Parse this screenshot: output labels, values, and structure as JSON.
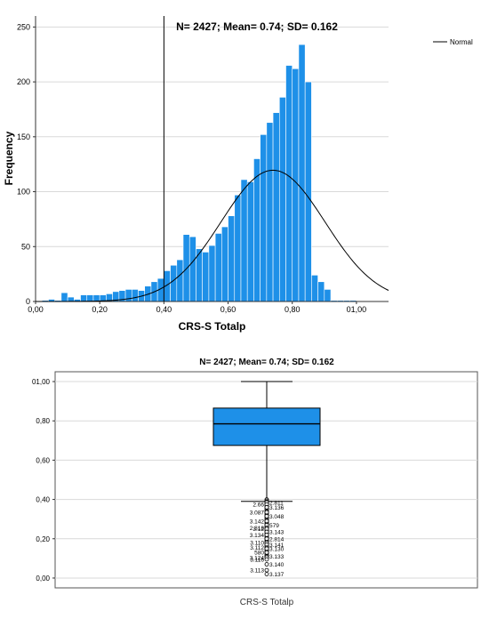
{
  "colors": {
    "bar": "#1E90E8",
    "box": "#1E90E8",
    "line": "#000000",
    "grid": "#d9d9d9"
  },
  "chart_data": [
    {
      "type": "bar",
      "subtype": "histogram-with-normal-curve",
      "annotation": "N= 2427; Mean= 0.74; SD= 0.162",
      "xlabel": "CRS-S Totalp",
      "ylabel": "Frequency",
      "legend": {
        "placement": "top-right",
        "entries": [
          "Normal"
        ]
      },
      "xlim": [
        0.0,
        1.1
      ],
      "ylim": [
        0,
        260
      ],
      "x_ticks": [
        {
          "value": 0.0,
          "label": "0,00"
        },
        {
          "value": 0.2,
          "label": "0,20"
        },
        {
          "value": 0.4,
          "label": "0,40"
        },
        {
          "value": 0.6,
          "label": "0,60"
        },
        {
          "value": 0.8,
          "label": "0,80"
        },
        {
          "value": 1.0,
          "label": "01,00"
        }
      ],
      "y_ticks": [
        0,
        50,
        100,
        150,
        200,
        250
      ],
      "grid": true,
      "reference_line_x": 0.4,
      "bin_width": 0.02,
      "bins_start": [
        0.02,
        0.04,
        0.06,
        0.08,
        0.1,
        0.12,
        0.14,
        0.16,
        0.18,
        0.2,
        0.22,
        0.24,
        0.26,
        0.28,
        0.3,
        0.32,
        0.34,
        0.36,
        0.38,
        0.4,
        0.42,
        0.44,
        0.46,
        0.48,
        0.5,
        0.52,
        0.54,
        0.56,
        0.58,
        0.6,
        0.62,
        0.64,
        0.66,
        0.68,
        0.7,
        0.72,
        0.74,
        0.76,
        0.78,
        0.8,
        0.82,
        0.84,
        0.86,
        0.88,
        0.9,
        0.92,
        0.94,
        0.96,
        0.98
      ],
      "values": [
        1,
        2,
        1,
        8,
        4,
        2,
        6,
        6,
        6,
        6,
        7,
        9,
        10,
        11,
        11,
        10,
        14,
        18,
        21,
        28,
        33,
        38,
        61,
        59,
        48,
        45,
        51,
        62,
        68,
        78,
        97,
        111,
        109,
        130,
        152,
        163,
        172,
        186,
        215,
        212,
        234,
        200,
        24,
        18,
        11,
        1,
        1,
        1,
        1
      ],
      "normal_curve": {
        "mean": 0.74,
        "sd": 0.162,
        "n": 2427
      }
    },
    {
      "type": "box",
      "title": "N= 2427; Mean= 0.74; SD= 0.162",
      "category": "CRS-S Totalp",
      "ylim": [
        -0.05,
        1.05
      ],
      "y_ticks": [
        {
          "value": 0.0,
          "label": "0,00"
        },
        {
          "value": 0.2,
          "label": "0,20"
        },
        {
          "value": 0.4,
          "label": "0,40"
        },
        {
          "value": 0.6,
          "label": "0,60"
        },
        {
          "value": 0.8,
          "label": "0,80"
        },
        {
          "value": 1.0,
          "label": "01,00"
        }
      ],
      "grid": true,
      "stats": {
        "min": 0.39,
        "q1": 0.675,
        "median": 0.785,
        "q3": 0.865,
        "max": 1.0
      },
      "outliers": [
        {
          "value": 0.385,
          "label": "2.811",
          "side": "right"
        },
        {
          "value": 0.375,
          "label": "2.66",
          "side": "left"
        },
        {
          "value": 0.36,
          "label": "3.136",
          "side": "right"
        },
        {
          "value": 0.335,
          "label": "3.087",
          "side": "left"
        },
        {
          "value": 0.315,
          "label": "3.048",
          "side": "right"
        },
        {
          "value": 0.29,
          "label": "3.142",
          "side": "left"
        },
        {
          "value": 0.27,
          "label": "579",
          "side": "right"
        },
        {
          "value": 0.255,
          "label": "2.818",
          "side": "left"
        },
        {
          "value": 0.25,
          "label": "3.12",
          "side": "left"
        },
        {
          "value": 0.235,
          "label": "3.143",
          "side": "right"
        },
        {
          "value": 0.22,
          "label": "3.134",
          "side": "left"
        },
        {
          "value": 0.2,
          "label": "2.814",
          "side": "right"
        },
        {
          "value": 0.18,
          "label": "3.110",
          "side": "left"
        },
        {
          "value": 0.17,
          "label": "3.141",
          "side": "right"
        },
        {
          "value": 0.155,
          "label": "3.112",
          "side": "left"
        },
        {
          "value": 0.15,
          "label": "3.130",
          "side": "right"
        },
        {
          "value": 0.13,
          "label": "580",
          "side": "left"
        },
        {
          "value": 0.11,
          "label": "3.133",
          "side": "right"
        },
        {
          "value": 0.105,
          "label": "3.124",
          "side": "left"
        },
        {
          "value": 0.095,
          "label": "3.116",
          "side": "left"
        },
        {
          "value": 0.07,
          "label": "3.140",
          "side": "right"
        },
        {
          "value": 0.04,
          "label": "3.113",
          "side": "left"
        },
        {
          "value": 0.02,
          "label": "3.137",
          "side": "right"
        }
      ]
    }
  ]
}
